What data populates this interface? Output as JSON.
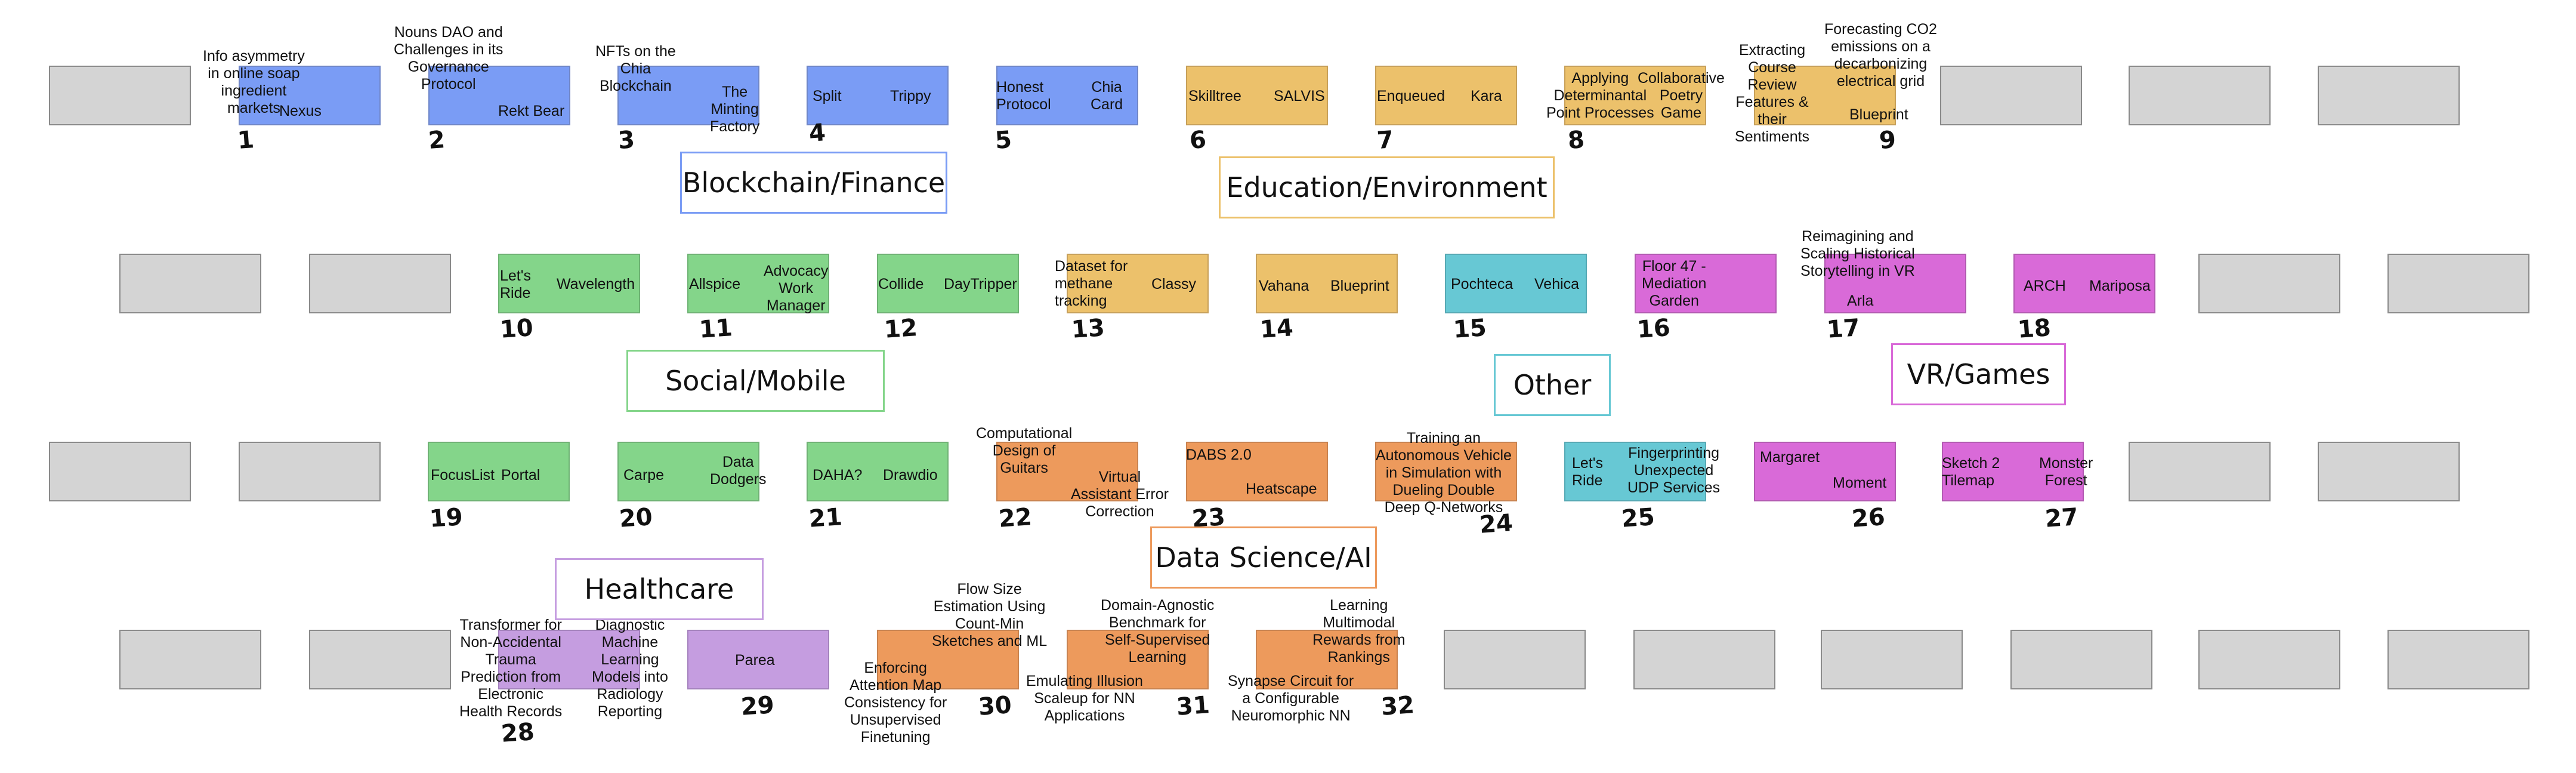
{
  "projects": [
    {
      "num": "1",
      "a": "Info asymmetry\nin online soap\ningredient\nmarkets",
      "b": "Nexus"
    },
    {
      "num": "2",
      "a": "Nouns DAO and\nChallenges in its\nGovernance\nProtocol",
      "b": "Rekt Bear"
    },
    {
      "num": "3",
      "a": "NFTs on the\nChia\nBlockchain",
      "b": "The\nMinting\nFactory"
    },
    {
      "num": "4",
      "a": "Split",
      "b": "Trippy"
    },
    {
      "num": "5",
      "a": "Honest\nProtocol",
      "b": "Chia\nCard"
    },
    {
      "num": "6",
      "a": "Skilltree",
      "b": "SALVIS"
    },
    {
      "num": "7",
      "a": "Enqueued",
      "b": "Kara"
    },
    {
      "num": "8",
      "a": "Applying\nDeterminantal\nPoint Processes",
      "b": "Collaborative\nPoetry\nGame"
    },
    {
      "num": "9",
      "a": "Extracting\nCourse\nReview\nFeatures &\ntheir\nSentiments",
      "b": "Forecasting CO2\nemissions on a\ndecarbonizing\nelectrical grid",
      "c": "Blueprint"
    },
    {
      "num": "10",
      "a": "Let's\nRide",
      "b": "Wavelength"
    },
    {
      "num": "11",
      "a": "Allspice",
      "b": "Advocacy\nWork\nManager"
    },
    {
      "num": "12",
      "a": "Collide",
      "b": "DayTripper"
    },
    {
      "num": "13",
      "a": "Dataset for\nmethane\ntracking",
      "b": "Classy"
    },
    {
      "num": "14",
      "a": "Vahana",
      "b": "Blueprint"
    },
    {
      "num": "15",
      "a": "Pochteca",
      "b": "Vehica"
    },
    {
      "num": "16",
      "a": "Floor 47 -\nMediation\nGarden"
    },
    {
      "num": "17",
      "a": "Reimagining and\nScaling Historical\nStorytelling in VR",
      "b": "Arla"
    },
    {
      "num": "18",
      "a": "ARCH",
      "b": "Mariposa"
    },
    {
      "num": "19",
      "a": "FocusList",
      "b": "Portal"
    },
    {
      "num": "20",
      "a": "Carpe",
      "b": "Data\nDodgers"
    },
    {
      "num": "21",
      "a": "DAHA?",
      "b": "Drawdio"
    },
    {
      "num": "22",
      "a": "Computational\nDesign of\nGuitars",
      "b": "Virtual\nAssistant Error\nCorrection"
    },
    {
      "num": "23",
      "a": "DABS 2.0",
      "b": "Heatscape"
    },
    {
      "num": "24",
      "a": "Training an\nAutonomous Vehicle\nin Simulation with\nDueling Double\nDeep Q-Networks"
    },
    {
      "num": "25",
      "a": "Let's\nRide",
      "b": "Fingerprinting\nUnexpected\nUDP Services"
    },
    {
      "num": "26",
      "a": "Margaret",
      "b": "Moment"
    },
    {
      "num": "27",
      "a": "Sketch 2\nTilemap",
      "b": "Monster\nForest"
    },
    {
      "num": "28",
      "a": "Transformer for\nNon-Accidental\nTrauma\nPrediction from\nElectronic\nHealth Records",
      "b": "Diagnostic\nMachine\nLearning\nModels into\nRadiology\nReporting"
    },
    {
      "num": "29",
      "a": "Parea"
    },
    {
      "num": "30",
      "a": "Flow Size\nEstimation Using\nCount-Min\nSketches and ML",
      "b": "Enforcing\nAttention Map\nConsistency for\nUnsupervised\nFinetuning"
    },
    {
      "num": "31",
      "a": "Domain-Agnostic\nBenchmark for\nSelf-Supervised\nLearning",
      "b": "Emulating Illusion\nScaleup for NN\nApplications"
    },
    {
      "num": "32",
      "a": "Learning\nMultimodal\nRewards from\nRankings",
      "b": "Synapse Circuit for\na Configurable\nNeuromorphic NN"
    }
  ],
  "categories": {
    "blockchain": "Blockchain/Finance",
    "education": "Education/Environment",
    "social": "Social/Mobile",
    "other": "Other",
    "vr": "VR/Games",
    "datasci": "Data Science/AI",
    "healthcare": "Healthcare"
  },
  "colors": {
    "blockchain": "#7a9cf5",
    "education": "#ecc16b",
    "social": "#84d58a",
    "other": "#67c8d4",
    "vr": "#d96ad8",
    "datasci": "#ed9a5c",
    "healthcare": "#c59de0",
    "empty": "#d4d4d4"
  }
}
